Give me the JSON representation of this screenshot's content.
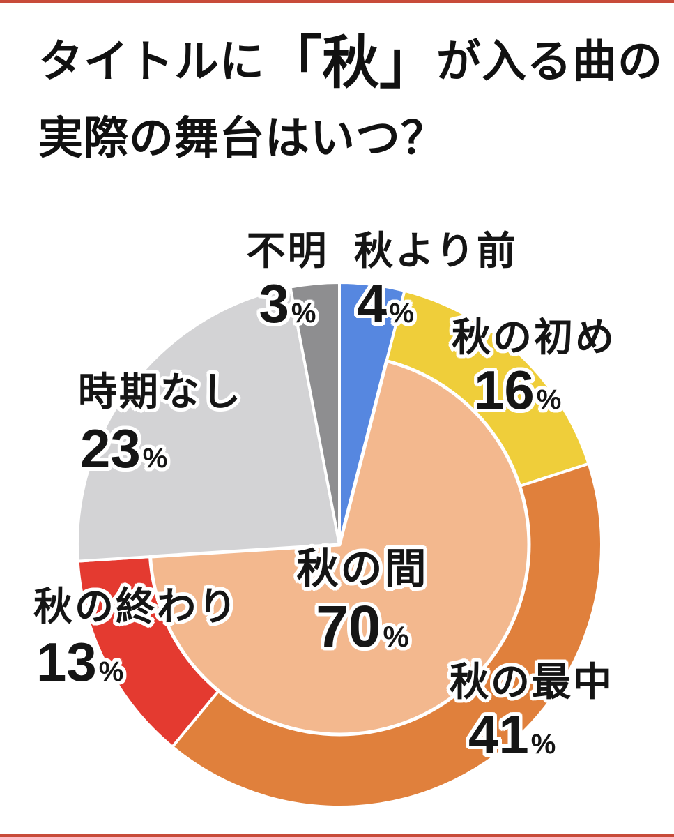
{
  "title": {
    "line1_pre": "タイトルに",
    "line1_emph": "「秋」",
    "line1_post": "が入る曲の",
    "line2": "実際の舞台はいつ？"
  },
  "chart_data": {
    "type": "pie",
    "title": "タイトルに「秋」が入る曲の実際の舞台はいつ？",
    "unit": "%",
    "start_angle_deg": -90,
    "direction": "clockwise",
    "segments": [
      {
        "label": "秋より前",
        "value": 4,
        "color": "#5687e0"
      },
      {
        "label": "秋の初め",
        "value": 16,
        "color": "#efce3a"
      },
      {
        "label": "秋の最中",
        "value": 41,
        "color": "#e0803c"
      },
      {
        "label": "秋の終わり",
        "value": 13,
        "color": "#e43a30"
      },
      {
        "label": "時期なし",
        "value": 23,
        "color": "#d3d3d5"
      },
      {
        "label": "不明",
        "value": 3,
        "color": "#8e8e90"
      }
    ],
    "overlay": {
      "label": "秋の間",
      "value": 70,
      "color": "#f3b88e",
      "spans": [
        "秋の初め",
        "秋の最中",
        "秋の終わり"
      ]
    }
  }
}
